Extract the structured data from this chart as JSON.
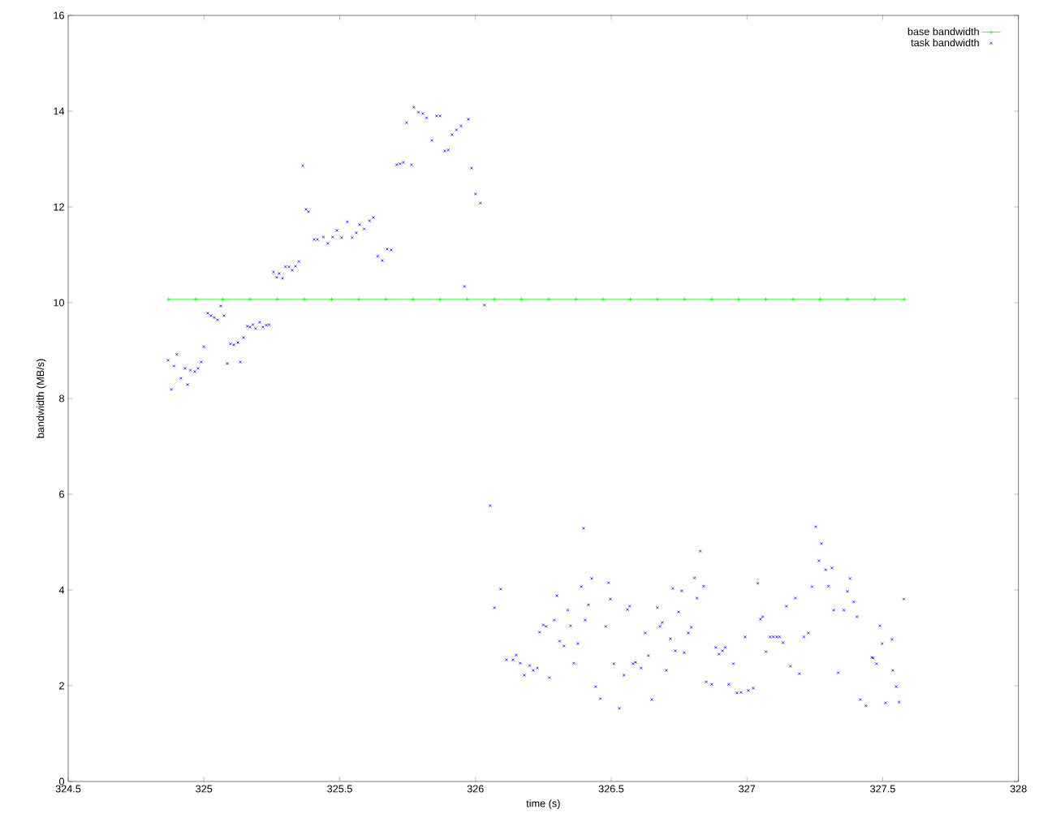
{
  "chart_data": {
    "type": "scatter",
    "xlabel": "time (s)",
    "ylabel": "bandwidth (MB/s)",
    "xlim": [
      324.5,
      328
    ],
    "ylim": [
      0,
      16
    ],
    "xticks": [
      324.5,
      325,
      325.5,
      326,
      326.5,
      327,
      327.5,
      328
    ],
    "yticks": [
      0,
      2,
      4,
      6,
      8,
      10,
      12,
      14,
      16
    ],
    "legend": "top right",
    "series": [
      {
        "name": "base bandwidth",
        "type": "line",
        "marker": "cross",
        "color": "#00ff00",
        "x": [
          324.87,
          324.97,
          325.07,
          325.17,
          325.27,
          325.37,
          325.47,
          325.57,
          325.67,
          325.77,
          325.87,
          325.97,
          326.07,
          326.17,
          326.27,
          326.37,
          326.47,
          326.57,
          326.67,
          326.77,
          326.87,
          326.97,
          327.07,
          327.17,
          327.27,
          327.37,
          327.47,
          327.58
        ],
        "values": [
          10.07,
          10.07,
          10.07,
          10.07,
          10.07,
          10.07,
          10.07,
          10.07,
          10.07,
          10.07,
          10.07,
          10.07,
          10.07,
          10.07,
          10.07,
          10.07,
          10.07,
          10.07,
          10.07,
          10.07,
          10.07,
          10.07,
          10.07,
          10.07,
          10.07,
          10.07,
          10.07,
          10.07
        ]
      },
      {
        "name": "task bandwidth",
        "marker": "cross",
        "color": "#0000ff",
        "x": [
          324.868,
          324.88,
          324.89,
          324.9,
          324.915,
          324.93,
          324.94,
          324.95,
          324.966,
          324.978,
          324.99,
          325.0,
          325.014,
          325.026,
          325.038,
          325.05,
          325.062,
          325.074,
          325.086,
          325.098,
          325.11,
          325.125,
          325.134,
          325.146,
          325.16,
          325.17,
          325.18,
          325.19,
          325.205,
          325.217,
          325.23,
          325.24,
          325.256,
          325.268,
          325.277,
          325.29,
          325.3,
          325.313,
          325.325,
          325.337,
          325.35,
          325.364,
          325.376,
          325.385,
          325.406,
          325.418,
          325.44,
          325.456,
          325.474,
          325.49,
          325.507,
          325.528,
          325.546,
          325.561,
          325.573,
          325.59,
          325.61,
          325.624,
          325.64,
          325.657,
          325.675,
          325.69,
          325.71,
          325.722,
          325.734,
          325.746,
          325.764,
          325.773,
          325.79,
          325.806,
          325.82,
          325.84,
          325.857,
          325.87,
          325.887,
          325.9,
          325.914,
          325.93,
          325.947,
          325.96,
          325.974,
          325.986,
          326.0,
          326.018,
          326.033,
          326.054,
          326.07,
          326.093,
          326.114,
          326.138,
          326.15,
          326.165,
          326.18,
          326.2,
          326.213,
          326.228,
          326.236,
          326.25,
          326.26,
          326.272,
          326.29,
          326.3,
          326.31,
          326.326,
          326.34,
          326.35,
          326.362,
          326.377,
          326.39,
          326.398,
          326.404,
          326.416,
          326.428,
          326.443,
          326.46,
          326.48,
          326.49,
          326.497,
          326.51,
          326.53,
          326.547,
          326.56,
          326.568,
          326.58,
          326.59,
          326.61,
          326.625,
          326.637,
          326.65,
          326.67,
          326.68,
          326.688,
          326.703,
          326.718,
          326.727,
          326.736,
          326.748,
          326.76,
          326.769,
          326.784,
          326.795,
          326.807,
          326.816,
          326.828,
          326.84,
          326.85,
          326.87,
          326.885,
          326.897,
          326.91,
          326.92,
          326.933,
          326.95,
          326.963,
          326.978,
          326.993,
          327.005,
          327.023,
          327.04,
          327.05,
          327.058,
          327.07,
          327.085,
          327.097,
          327.11,
          327.12,
          327.133,
          327.145,
          327.16,
          327.178,
          327.193,
          327.21,
          327.226,
          327.24,
          327.253,
          327.265,
          327.274,
          327.29,
          327.3,
          327.313,
          327.32,
          327.336,
          327.357,
          327.37,
          327.38,
          327.393,
          327.405,
          327.417,
          327.438,
          327.46,
          327.465,
          327.477,
          327.49,
          327.498,
          327.51,
          327.534,
          327.537,
          327.55,
          327.56,
          327.578
        ],
        "values": [
          8.8,
          8.19,
          8.68,
          8.92,
          8.42,
          8.63,
          8.29,
          8.59,
          8.56,
          8.63,
          8.76,
          9.08,
          9.78,
          9.73,
          9.69,
          9.64,
          9.93,
          9.73,
          8.73,
          9.14,
          9.12,
          9.17,
          8.76,
          9.27,
          9.51,
          9.49,
          9.54,
          9.46,
          9.59,
          9.49,
          9.53,
          9.54,
          10.64,
          10.53,
          10.61,
          10.51,
          10.75,
          10.75,
          10.68,
          10.76,
          10.86,
          12.86,
          11.95,
          11.9,
          11.32,
          11.32,
          11.37,
          11.24,
          11.37,
          11.51,
          11.36,
          11.69,
          11.36,
          11.46,
          11.63,
          11.54,
          11.71,
          11.78,
          10.97,
          10.88,
          11.12,
          11.1,
          12.88,
          12.9,
          12.93,
          13.76,
          12.88,
          14.08,
          13.98,
          13.95,
          13.86,
          13.39,
          13.9,
          13.9,
          13.17,
          13.19,
          13.51,
          13.61,
          13.69,
          10.34,
          13.83,
          12.81,
          12.27,
          12.08,
          9.95,
          5.76,
          3.63,
          4.02,
          2.54,
          2.54,
          2.64,
          2.47,
          2.22,
          2.42,
          2.32,
          2.37,
          3.12,
          3.27,
          3.24,
          2.17,
          3.37,
          3.88,
          2.93,
          2.83,
          3.58,
          3.25,
          2.47,
          2.88,
          4.07,
          5.29,
          3.37,
          3.69,
          4.24,
          1.98,
          1.73,
          3.24,
          4.15,
          3.81,
          2.46,
          1.53,
          2.22,
          3.59,
          3.66,
          2.46,
          2.49,
          2.37,
          3.1,
          2.63,
          1.71,
          3.63,
          3.24,
          3.32,
          2.32,
          2.98,
          4.03,
          2.73,
          3.54,
          3.98,
          2.69,
          3.1,
          3.22,
          4.25,
          3.83,
          4.81,
          4.08,
          2.08,
          2.03,
          2.8,
          2.66,
          2.73,
          2.8,
          2.03,
          2.46,
          1.85,
          1.86,
          3.02,
          1.9,
          1.95,
          4.14,
          3.39,
          3.44,
          2.71,
          3.02,
          3.02,
          3.02,
          3.02,
          2.9,
          3.66,
          2.41,
          3.83,
          2.25,
          3.02,
          3.1,
          4.07,
          5.32,
          4.61,
          4.97,
          4.42,
          4.08,
          4.46,
          3.58,
          2.27,
          3.58,
          3.97,
          4.24,
          3.75,
          3.44,
          1.71,
          1.58,
          2.59,
          2.58,
          2.46,
          3.25,
          2.88,
          1.64,
          2.97,
          2.32,
          1.98,
          1.66,
          3.81
        ]
      }
    ]
  }
}
